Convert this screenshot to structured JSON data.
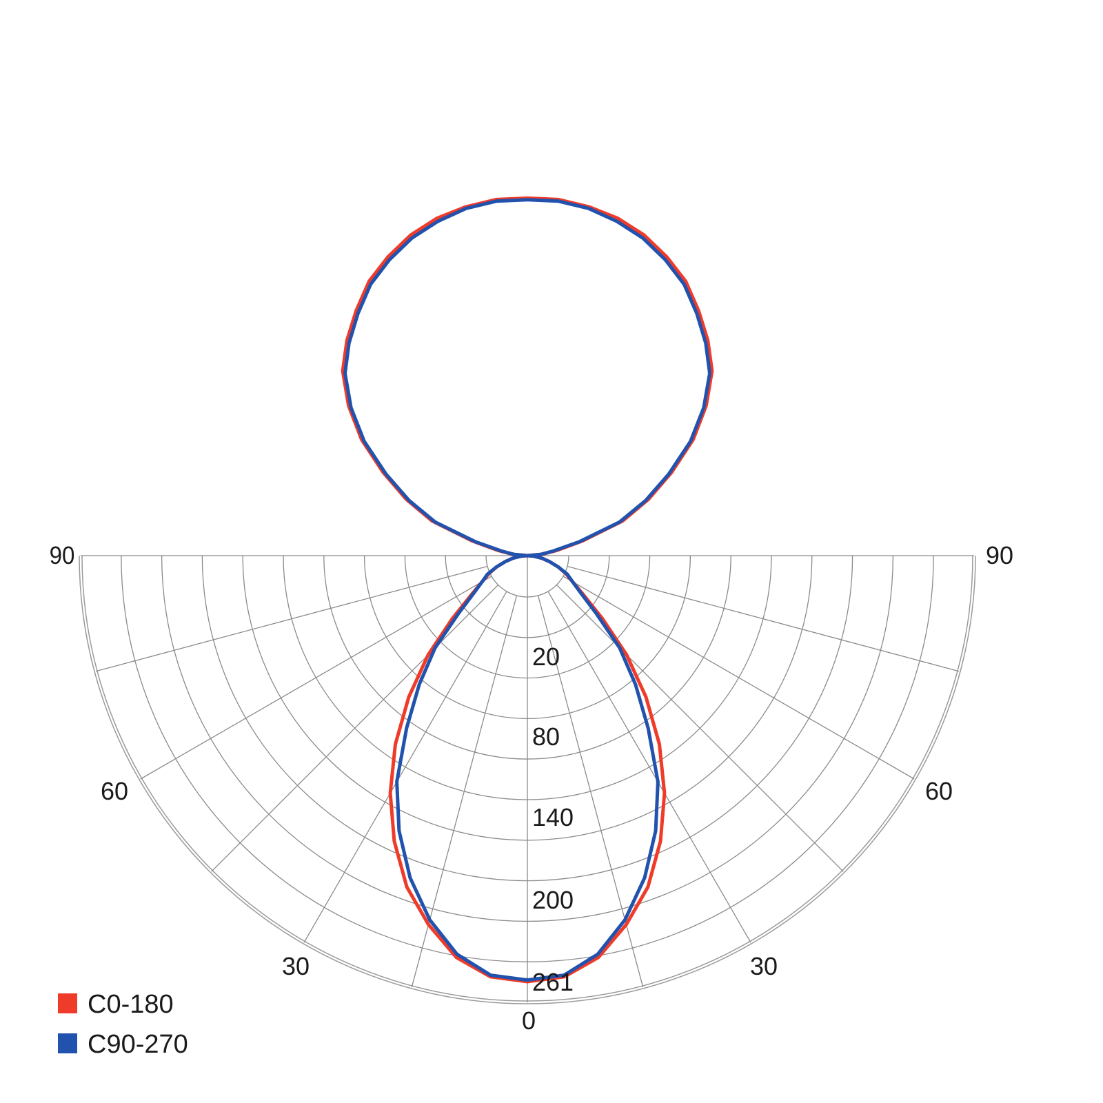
{
  "chart_data": {
    "type": "polar",
    "angle_labels": [
      "90",
      "60",
      "30",
      "0",
      "30",
      "60",
      "90"
    ],
    "radial_labels": [
      "20",
      "80",
      "140",
      "200",
      "261"
    ],
    "angles": [
      0,
      5,
      10,
      15,
      20,
      25,
      30,
      35,
      40,
      45,
      50,
      55,
      60,
      65,
      70,
      75,
      80,
      85,
      90,
      95,
      100,
      105,
      110,
      115,
      120,
      125,
      130,
      135,
      140,
      145,
      150,
      155,
      160,
      165,
      170,
      175,
      180
    ],
    "series": [
      {
        "name": "C0-180",
        "color": "#ef3b2a",
        "values": [
          261,
          259,
          250,
          234,
          216,
          193,
          168,
          141,
          113,
          86,
          60,
          42,
          32,
          26,
          20,
          14,
          9,
          4,
          0,
          9,
          18,
          35,
          62,
          82,
          102,
          124,
          143,
          160,
          172,
          183,
          194,
          202,
          209,
          214,
          217,
          219,
          219
        ]
      },
      {
        "name": "C90-270",
        "color": "#2152ad",
        "values": [
          260,
          258,
          248,
          231,
          210,
          186,
          160,
          129,
          103,
          80,
          55,
          40,
          32,
          27,
          20,
          14,
          9,
          4,
          0,
          8,
          16,
          33,
          60,
          80,
          100,
          122,
          141,
          158,
          170,
          181,
          192,
          200,
          207,
          212,
          216,
          218,
          218
        ]
      }
    ],
    "symmetric": true,
    "grid": true,
    "legend": "bottom-left"
  }
}
